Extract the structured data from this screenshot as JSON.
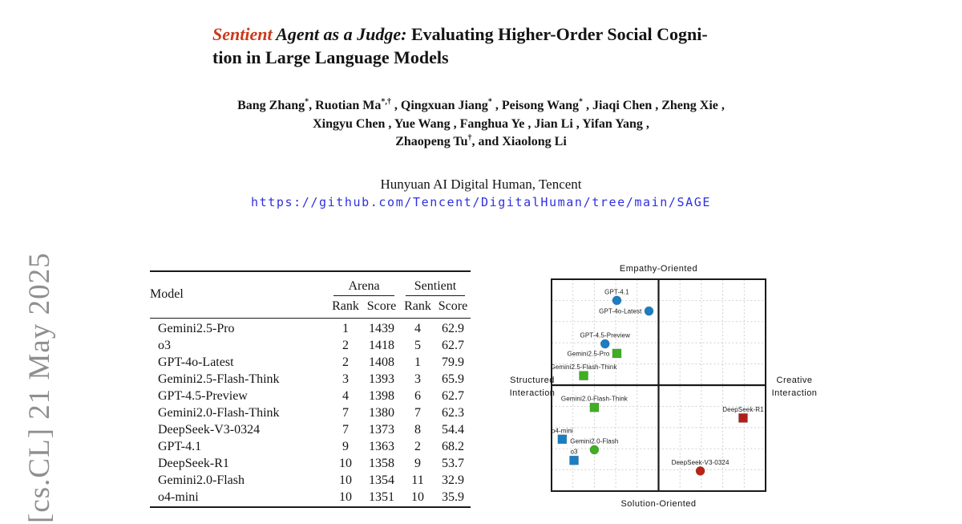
{
  "stamp": {
    "text": "[cs.CL] 21 May 2025"
  },
  "colors": {
    "title_accent": "#cb3a1b",
    "link_blue": "#2f2fe0",
    "stamp_gray": "#8f8f8f",
    "gpt_blue": "#1b7ec2",
    "gemini_green": "#3fae23",
    "deepseek_red": "#b2251c"
  },
  "title": {
    "sentient": "Sentient",
    "italic": " Agent as a Judge: ",
    "line1_rest": "Evaluating Higher-Order Social Cogni-",
    "line2": "tion in Large Language Models"
  },
  "authors": {
    "lines": [
      [
        {
          "t": "Bang Zhang"
        },
        {
          "sup": "*"
        },
        {
          "t": ", Ruotian Ma"
        },
        {
          "sup": "*,†"
        },
        {
          "t": " , Qingxuan Jiang"
        },
        {
          "sup": "*"
        },
        {
          "t": " , Peisong Wang"
        },
        {
          "sup": "*"
        },
        {
          "t": " , Jiaqi Chen , Zheng Xie ,"
        }
      ],
      [
        {
          "t": "Xingyu Chen , Yue Wang , Fanghua Ye , Jian Li , Yifan Yang ,"
        }
      ],
      [
        {
          "t": "Zhaopeng Tu"
        },
        {
          "sup": "†"
        },
        {
          "t": ", and Xiaolong Li"
        }
      ]
    ]
  },
  "affiliation": "Hunyuan AI Digital Human, Tencent",
  "link": "https://github.com/Tencent/DigitalHuman/tree/main/SAGE",
  "table": {
    "col_model": "Model",
    "group1": "Arena",
    "group2": "Sentient",
    "subcols": [
      "Rank",
      "Score",
      "Rank",
      "Score"
    ],
    "rows": [
      {
        "model": "Gemini2.5-Pro",
        "arena_rank": "1",
        "arena_score": "1439",
        "sent_rank": "4",
        "sent_score": "62.9"
      },
      {
        "model": "o3",
        "arena_rank": "2",
        "arena_score": "1418",
        "sent_rank": "5",
        "sent_score": "62.7"
      },
      {
        "model": "GPT-4o-Latest",
        "arena_rank": "2",
        "arena_score": "1408",
        "sent_rank": "1",
        "sent_score": "79.9"
      },
      {
        "model": "Gemini2.5-Flash-Think",
        "arena_rank": "3",
        "arena_score": "1393",
        "sent_rank": "3",
        "sent_score": "65.9"
      },
      {
        "model": "GPT-4.5-Preview",
        "arena_rank": "4",
        "arena_score": "1398",
        "sent_rank": "6",
        "sent_score": "62.7"
      },
      {
        "model": "Gemini2.0-Flash-Think",
        "arena_rank": "7",
        "arena_score": "1380",
        "sent_rank": "7",
        "sent_score": "62.3"
      },
      {
        "model": "DeepSeek-V3-0324",
        "arena_rank": "7",
        "arena_score": "1373",
        "sent_rank": "8",
        "sent_score": "54.4"
      },
      {
        "model": "GPT-4.1",
        "arena_rank": "9",
        "arena_score": "1363",
        "sent_rank": "2",
        "sent_score": "68.2"
      },
      {
        "model": "DeepSeek-R1",
        "arena_rank": "10",
        "arena_score": "1358",
        "sent_rank": "9",
        "sent_score": "53.7"
      },
      {
        "model": "Gemini2.0-Flash",
        "arena_rank": "10",
        "arena_score": "1354",
        "sent_rank": "11",
        "sent_score": "32.9"
      },
      {
        "model": "o4-mini",
        "arena_rank": "10",
        "arena_score": "1351",
        "sent_rank": "10",
        "sent_score": "35.9"
      }
    ]
  },
  "chart_data": {
    "type": "scatter",
    "xlim": [
      -1,
      1
    ],
    "ylim": [
      -1,
      1
    ],
    "grid": "dashed, 10x10 divisions, quadrant cross lines",
    "labels": {
      "top": "Empathy-Oriented",
      "bottom": "Solution-Oriented",
      "left": [
        "Structured",
        "Interaction"
      ],
      "right": [
        "Creative",
        "Interaction"
      ]
    },
    "points": [
      {
        "label": "GPT-4.1",
        "x": -0.39,
        "y": 0.8,
        "shape": "circle",
        "color": "#1b7ec2",
        "label_pos": "above"
      },
      {
        "label": "GPT-4o-Latest",
        "x": -0.09,
        "y": 0.7,
        "shape": "circle",
        "color": "#1b7ec2",
        "label_pos": "left"
      },
      {
        "label": "GPT-4.5-Preview",
        "x": -0.5,
        "y": 0.39,
        "shape": "circle",
        "color": "#1b7ec2",
        "label_pos": "above"
      },
      {
        "label": "Gemini2.5-Pro",
        "x": -0.39,
        "y": 0.3,
        "shape": "square",
        "color": "#3fae23",
        "label_pos": "left"
      },
      {
        "label": "Gemini2.5-Flash-Think",
        "x": -0.7,
        "y": 0.09,
        "shape": "square",
        "color": "#3fae23",
        "label_pos": "above"
      },
      {
        "label": "Gemini2.0-Flash-Think",
        "x": -0.6,
        "y": -0.21,
        "shape": "square",
        "color": "#3fae23",
        "label_pos": "above"
      },
      {
        "label": "o4-mini",
        "x": -0.9,
        "y": -0.51,
        "shape": "square",
        "color": "#1b7ec2",
        "label_pos": "above"
      },
      {
        "label": "Gemini2.0-Flash",
        "x": -0.6,
        "y": -0.61,
        "shape": "circle",
        "color": "#3fae23",
        "label_pos": "above"
      },
      {
        "label": "o3",
        "x": -0.79,
        "y": -0.71,
        "shape": "square",
        "color": "#1b7ec2",
        "label_pos": "above"
      },
      {
        "label": "DeepSeek-R1",
        "x": 0.79,
        "y": -0.31,
        "shape": "square",
        "color": "#ae2018",
        "label_pos": "above"
      },
      {
        "label": "DeepSeek-V3-0324",
        "x": 0.39,
        "y": -0.81,
        "shape": "circle",
        "color": "#bb2413",
        "label_pos": "above"
      }
    ]
  }
}
